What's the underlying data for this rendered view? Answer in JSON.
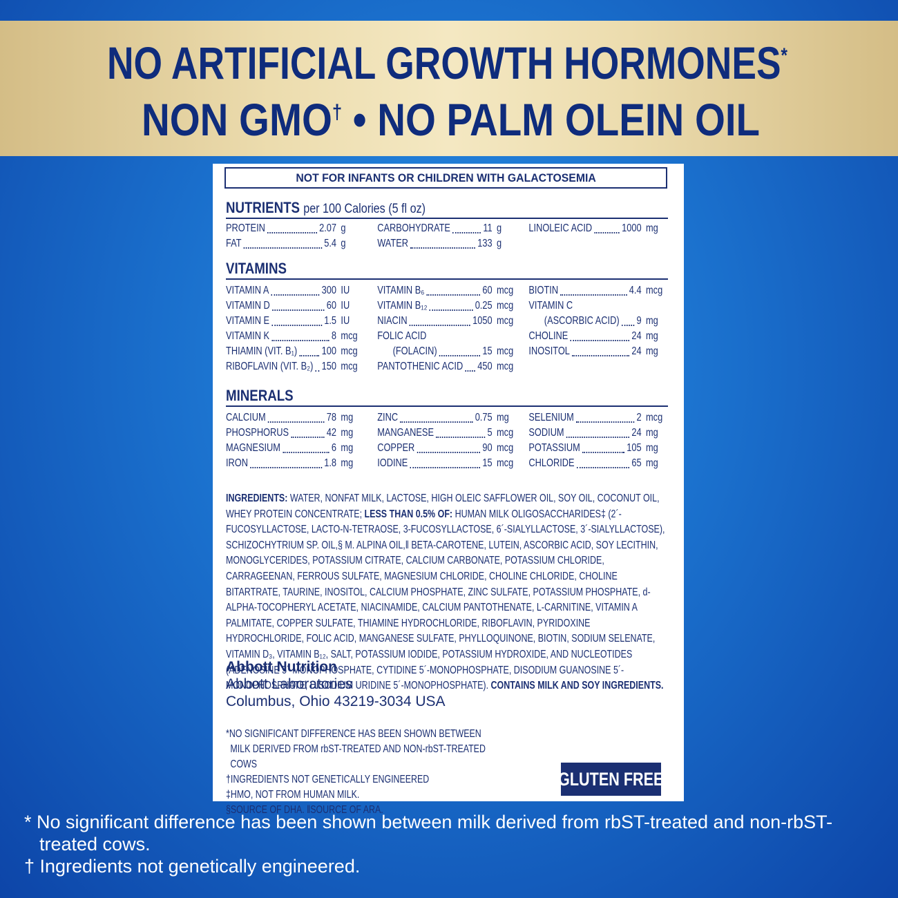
{
  "banner": {
    "line1": {
      "text": "NO ARTIFICIAL GROWTH HORMONES",
      "mark": "*"
    },
    "line2": {
      "before": "NON GMO",
      "mark": "†",
      "after": " • NO PALM OLEIN OIL"
    }
  },
  "label": {
    "warning": "NOT FOR INFANTS OR CHILDREN WITH GALACTOSEMIA",
    "sections": [
      {
        "title": "NUTRIENTS",
        "subtitle": "per 100 Calories (5 fl oz)",
        "columns": [
          [
            {
              "name": "PROTEIN",
              "amount": "2.07",
              "unit": "g"
            },
            {
              "name": "FAT",
              "amount": "5.4",
              "unit": "g"
            }
          ],
          [
            {
              "name": "CARBOHYDRATE",
              "amount": "11",
              "unit": "g"
            },
            {
              "name": "WATER",
              "amount": "133",
              "unit": "g"
            }
          ],
          [
            {
              "name": "LINOLEIC ACID",
              "amount": "1000",
              "unit": "mg"
            }
          ]
        ]
      },
      {
        "title": "VITAMINS",
        "columns": [
          [
            {
              "name": "VITAMIN A",
              "amount": "300",
              "unit": "IU"
            },
            {
              "name": "VITAMIN D",
              "amount": "60",
              "unit": "IU"
            },
            {
              "name": "VITAMIN E",
              "amount": "1.5",
              "unit": "IU"
            },
            {
              "name": "VITAMIN K",
              "amount": "8",
              "unit": "mcg"
            },
            {
              "name": "THIAMIN (VIT. B₁)",
              "amount": "100",
              "unit": "mcg"
            },
            {
              "name": "RIBOFLAVIN (VIT. B₂)",
              "amount": "150",
              "unit": "mcg"
            }
          ],
          [
            {
              "name": "VITAMIN B₆",
              "amount": "60",
              "unit": "mcg"
            },
            {
              "name": "VITAMIN B₁₂",
              "amount": "0.25",
              "unit": "mcg"
            },
            {
              "name": "NIACIN",
              "amount": "1050",
              "unit": "mcg"
            },
            {
              "name": "FOLIC ACID"
            },
            {
              "name": "(FOLACIN)",
              "amount": "15",
              "unit": "mcg"
            },
            {
              "name": "PANTOTHENIC ACID",
              "amount": "450",
              "unit": "mcg"
            }
          ],
          [
            {
              "name": "BIOTIN",
              "amount": "4.4",
              "unit": "mcg"
            },
            {
              "name": "VITAMIN C"
            },
            {
              "name": "(ASCORBIC ACID)",
              "amount": "9",
              "unit": "mg"
            },
            {
              "name": "CHOLINE",
              "amount": "24",
              "unit": "mg"
            },
            {
              "name": "INOSITOL",
              "amount": "24",
              "unit": "mg"
            }
          ]
        ]
      },
      {
        "title": "MINERALS",
        "columns": [
          [
            {
              "name": "CALCIUM",
              "amount": "78",
              "unit": "mg"
            },
            {
              "name": "PHOSPHORUS",
              "amount": "42",
              "unit": "mg"
            },
            {
              "name": "MAGNESIUM",
              "amount": "6",
              "unit": "mg"
            },
            {
              "name": "IRON",
              "amount": "1.8",
              "unit": "mg"
            }
          ],
          [
            {
              "name": "ZINC",
              "amount": "0.75",
              "unit": "mg"
            },
            {
              "name": "MANGANESE",
              "amount": "5",
              "unit": "mcg"
            },
            {
              "name": "COPPER",
              "amount": "90",
              "unit": "mcg"
            },
            {
              "name": "IODINE",
              "amount": "15",
              "unit": "mcg"
            }
          ],
          [
            {
              "name": "SELENIUM",
              "amount": "2",
              "unit": "mcg"
            },
            {
              "name": "SODIUM",
              "amount": "24",
              "unit": "mg"
            },
            {
              "name": "POTASSIUM",
              "amount": "105",
              "unit": "mg"
            },
            {
              "name": "CHLORIDE",
              "amount": "65",
              "unit": "mg"
            }
          ]
        ]
      }
    ],
    "ingredients": [
      {
        "bold": "INGREDIENTS:"
      },
      {
        "text": " WATER, NONFAT MILK, LACTOSE, HIGH OLEIC SAFFLOWER OIL, SOY OIL, COCONUT OIL, WHEY PROTEIN CONCENTRATE; "
      },
      {
        "bold": "LESS THAN 0.5% OF:"
      },
      {
        "text": " HUMAN MILK OLIGOSACCHARIDES‡ (2´-FUCOSYLLACTOSE, LACTO-N-TETRAOSE, 3-FUCOSYLLACTOSE, 6´-SIALYLLACTOSE, 3´-SIALYLLACTOSE), SCHIZOCHYTRIUM SP. OIL,§ M. ALPINA OIL,‖ BETA-CAROTENE, LUTEIN, ASCORBIC ACID, SOY LECITHIN, MONOGLYCERIDES, POTASSIUM CITRATE, CALCIUM CARBONATE, POTASSIUM CHLORIDE, CARRAGEENAN, FERROUS SULFATE, MAGNESIUM CHLORIDE, CHOLINE CHLORIDE, CHOLINE BITARTRATE, TAURINE, INOSITOL, CALCIUM PHOSPHATE, ZINC SULFATE, POTASSIUM PHOSPHATE, d-ALPHA-TOCOPHERYL ACETATE, NIACINAMIDE, CALCIUM PANTOTHENATE, L-CARNITINE, VITAMIN A PALMITATE, COPPER SULFATE, THIAMINE HYDROCHLORIDE, RIBOFLAVIN, PYRIDOXINE HYDROCHLORIDE, FOLIC ACID, MANGANESE SULFATE, PHYLLOQUINONE, BIOTIN, SODIUM SELENATE, VITAMIN D₃, VITAMIN B₁₂, SALT, POTASSIUM IODIDE, POTASSIUM HYDROXIDE, AND NUCLEOTIDES (ADENOSINE 5´-MONOPHOSPHATE, CYTIDINE 5´-MONOPHOSPHATE, DISODIUM GUANOSINE 5´-MONOPHOSPHATE, DISODIUM URIDINE 5´-MONOPHOSPHATE). "
      },
      {
        "bold": "CONTAINS MILK AND SOY INGREDIENTS."
      }
    ],
    "manufacturer": {
      "name": "Abbott Nutrition",
      "company": "Abbott Laboratories",
      "address": "Columbus, Ohio 43219-3034 USA"
    },
    "footnotes": [
      "*NO SIGNIFICANT DIFFERENCE HAS BEEN SHOWN BETWEEN MILK DERIVED FROM rbST-TREATED AND NON-rbST-TREATED COWS",
      "†INGREDIENTS NOT GENETICALLY ENGINEERED",
      "‡HMO, NOT FROM HUMAN MILK.",
      "§SOURCE OF DHA. ‖SOURCE OF ARA."
    ],
    "badge": "GLUTEN FREE"
  },
  "footer": [
    "* No significant difference has been shown between milk derived from rbST-treated and non-rbST-treated cows.",
    "† Ingredients not genetically engineered."
  ]
}
